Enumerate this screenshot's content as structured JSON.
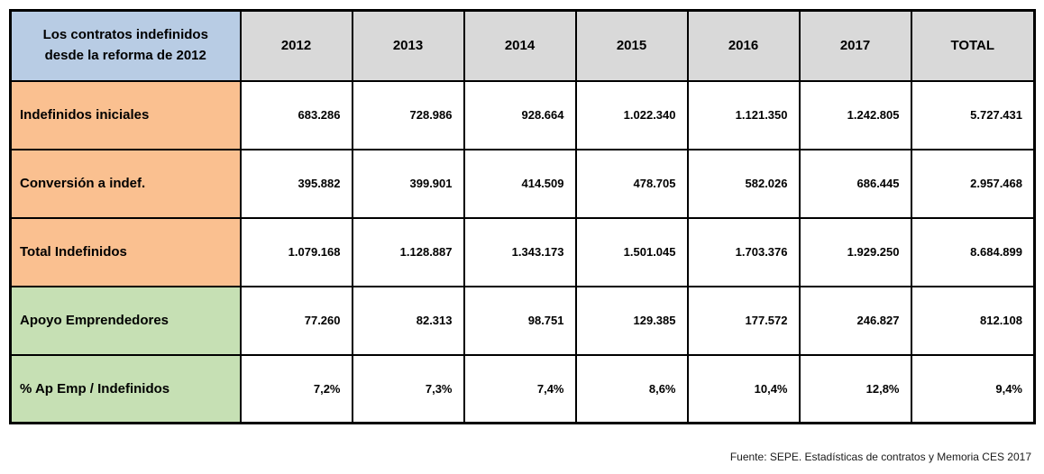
{
  "chart_data": {
    "type": "table",
    "title": "Los contratos indefinidos desde la reforma de 2012",
    "columns": [
      "2012",
      "2013",
      "2014",
      "2015",
      "2016",
      "2017",
      "TOTAL"
    ],
    "rows": [
      {
        "label": "Indefinidos iniciales",
        "values": [
          "683.286",
          "728.986",
          "928.664",
          "1.022.340",
          "1.121.350",
          "1.242.805",
          "5.727.431"
        ]
      },
      {
        "label": "Conversión a indef.",
        "values": [
          "395.882",
          "399.901",
          "414.509",
          "478.705",
          "582.026",
          "686.445",
          "2.957.468"
        ]
      },
      {
        "label": "Total Indefinidos",
        "values": [
          "1.079.168",
          "1.128.887",
          "1.343.173",
          "1.501.045",
          "1.703.376",
          "1.929.250",
          "8.684.899"
        ]
      },
      {
        "label": "Apoyo Emprendedores",
        "values": [
          "77.260",
          "82.313",
          "98.751",
          "129.385",
          "177.572",
          "246.827",
          "812.108"
        ]
      },
      {
        "label": "% Ap Emp / Indefinidos",
        "values": [
          "7,2%",
          "7,3%",
          "7,4%",
          "8,6%",
          "10,4%",
          "12,8%",
          "9,4%"
        ]
      }
    ],
    "row_styles": [
      "orange",
      "orange",
      "orange",
      "green",
      "green"
    ],
    "layout": "header row of years across top, category labels down left side, no gridlines beyond cell borders"
  },
  "footer": {
    "source": "Fuente: SEPE. Estadísticas de contratos y Memoria CES 2017"
  },
  "colors": {
    "header_label_bg": "#b8cce4",
    "header_year_bg": "#d9d9d9",
    "row_orange_bg": "#fac090",
    "row_green_bg": "#c6e0b4",
    "border": "#000000"
  }
}
